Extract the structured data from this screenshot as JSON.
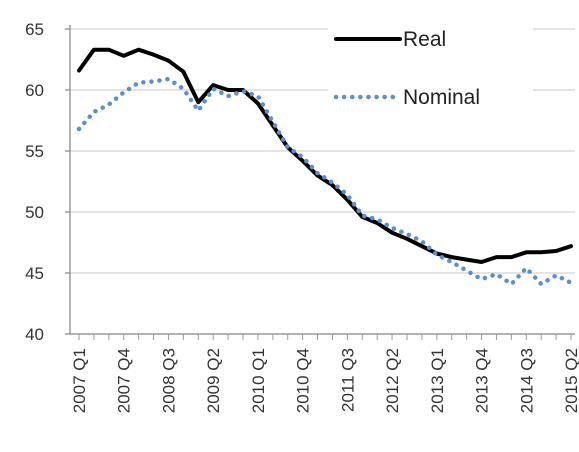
{
  "chart_data": {
    "type": "line",
    "title": "",
    "xlabel": "",
    "ylabel": "",
    "ylim": [
      40,
      65
    ],
    "yticks": [
      40,
      45,
      50,
      55,
      60,
      65
    ],
    "grid": "horizontal",
    "legend_position": "top-right",
    "x": [
      "2007 Q1",
      "2007 Q2",
      "2007 Q3",
      "2007 Q4",
      "2008 Q1",
      "2008 Q2",
      "2008 Q3",
      "2008 Q4",
      "2009 Q1",
      "2009 Q2",
      "2009 Q3",
      "2009 Q4",
      "2010 Q1",
      "2010 Q2",
      "2010 Q3",
      "2010 Q4",
      "2011 Q1",
      "2011 Q2",
      "2011 Q3",
      "2011 Q4",
      "2012 Q1",
      "2012 Q2",
      "2012 Q3",
      "2012 Q4",
      "2013 Q1",
      "2013 Q2",
      "2013 Q3",
      "2013 Q4",
      "2014 Q1",
      "2014 Q2",
      "2014 Q3",
      "2014 Q4",
      "2015 Q1",
      "2015 Q2"
    ],
    "xticklabels": [
      "2007 Q1",
      "2007 Q4",
      "2008 Q3",
      "2009 Q2",
      "2010 Q1",
      "2010 Q4",
      "2011 Q3",
      "2012 Q2",
      "2013 Q1",
      "2013 Q4",
      "2014 Q3",
      "2015 Q2"
    ],
    "series": [
      {
        "name": "Real",
        "color": "#000000",
        "style": "solid",
        "values": [
          61.6,
          63.3,
          63.3,
          62.8,
          63.3,
          62.9,
          62.4,
          61.5,
          59.0,
          60.4,
          60.0,
          60.0,
          58.9,
          57.1,
          55.3,
          54.2,
          53.0,
          52.2,
          51.0,
          49.6,
          49.1,
          48.3,
          47.8,
          47.2,
          46.6,
          46.3,
          46.1,
          45.9,
          46.3,
          46.3,
          46.7,
          46.7,
          46.8,
          47.2
        ]
      },
      {
        "name": "Nominal",
        "color": "#5b8fd0",
        "style": "dotted",
        "values": [
          56.8,
          58.2,
          58.8,
          59.8,
          60.6,
          60.7,
          60.9,
          60.1,
          58.3,
          60.1,
          59.5,
          59.9,
          59.5,
          57.4,
          55.3,
          54.5,
          53.2,
          52.4,
          51.4,
          49.7,
          49.4,
          48.7,
          48.2,
          47.6,
          46.5,
          45.9,
          45.2,
          44.5,
          44.9,
          44.1,
          45.4,
          44.1,
          44.8,
          44.2
        ]
      }
    ]
  }
}
